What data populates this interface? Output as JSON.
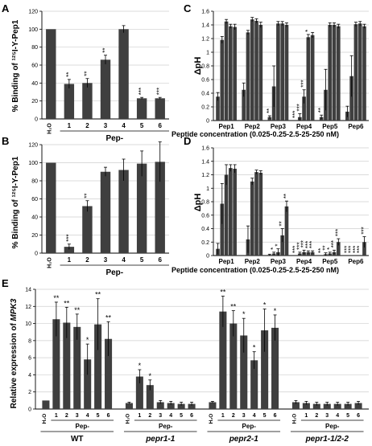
{
  "colors": {
    "bar": "#3f3f3f",
    "axis": "#000000",
    "grid": "#cfcfcf",
    "text": "#000000"
  },
  "chart_data": [
    {
      "panel": "A",
      "type": "bar",
      "ylabel": "% Binding of ¹²⁵I-Y-Pep1",
      "xlabel": "Pep-",
      "ylim": [
        0,
        120
      ],
      "yticks": [
        0,
        20,
        40,
        60,
        80,
        100,
        120
      ],
      "grid": true,
      "categories": [
        "H₂O",
        "1",
        "2",
        "3",
        "4",
        "5",
        "6"
      ],
      "values": [
        100,
        39,
        40,
        66,
        100,
        23,
        23
      ],
      "errors": [
        0,
        5,
        5,
        5,
        4,
        1,
        1
      ],
      "significance": [
        "",
        "**",
        "**",
        "**",
        "",
        "***",
        "***"
      ]
    },
    {
      "panel": "B",
      "type": "bar",
      "ylabel": "% Binding of ¹²⁵I-Y-Pep1",
      "xlabel": "Pep-",
      "ylim": [
        0,
        120
      ],
      "yticks": [
        0,
        20,
        40,
        60,
        80,
        100,
        120
      ],
      "grid": true,
      "categories": [
        "H₂O",
        "1",
        "2",
        "3",
        "4",
        "5",
        "6"
      ],
      "values": [
        100,
        7,
        52,
        90,
        92,
        99,
        101
      ],
      "errors": [
        0,
        3,
        6,
        5,
        12,
        14,
        22
      ],
      "significance": [
        "",
        "***",
        "**",
        "",
        "",
        "",
        ""
      ]
    },
    {
      "panel": "C",
      "type": "bar",
      "ylabel": "ΔpH",
      "xlabel": "Peptide concentration (0.025-0.25-2.5-25-250 nM)",
      "ylim": [
        0,
        1.6
      ],
      "yticks": [
        0,
        0.2,
        0.4,
        0.6,
        0.8,
        1,
        1.2,
        1.4,
        1.6
      ],
      "grid": true,
      "categories": [
        "Pep1",
        "Pep2",
        "Pep3",
        "Pep4",
        "Pep5",
        "Pep6"
      ],
      "values": [
        [
          0.35,
          1.18,
          1.45,
          1.38,
          1.37
        ],
        [
          0.45,
          1.29,
          1.48,
          1.46,
          1.4
        ],
        [
          0.05,
          0.5,
          1.42,
          1.42,
          1.4
        ],
        [
          0.0,
          0.05,
          0.35,
          1.22,
          1.25
        ],
        [
          0.05,
          0.45,
          1.4,
          1.4,
          1.38
        ],
        [
          0.13,
          0.65,
          1.41,
          1.42,
          1.38
        ]
      ],
      "errors": [
        [
          0.06,
          0.05,
          0.03,
          0.03,
          0.04
        ],
        [
          0.1,
          0.03,
          0.03,
          0.03,
          0.04
        ],
        [
          0.02,
          0.3,
          0.03,
          0.03,
          0.03
        ],
        [
          0.0,
          0.05,
          0.1,
          0.04,
          0.04
        ],
        [
          0.03,
          0.3,
          0.03,
          0.03,
          0.03
        ],
        [
          0.08,
          0.3,
          0.03,
          0.03,
          0.03
        ]
      ],
      "significance": [
        [
          "",
          "",
          "",
          "",
          ""
        ],
        [
          "",
          "",
          "",
          "",
          ""
        ],
        [
          "**",
          "",
          "",
          "",
          ""
        ],
        [
          "***",
          "***",
          "***",
          "*",
          ""
        ],
        [
          "**",
          "",
          "",
          "",
          ""
        ],
        [
          "",
          "",
          "",
          "",
          ""
        ]
      ]
    },
    {
      "panel": "D",
      "type": "bar",
      "ylabel": "ΔpH",
      "xlabel": "Peptide concentration (0.025-0.25-2.5-25-250 nM)",
      "ylim": [
        0,
        1.6
      ],
      "yticks": [
        0,
        0.2,
        0.4,
        0.6,
        0.8,
        1,
        1.2,
        1.4,
        1.6
      ],
      "grid": true,
      "categories": [
        "Pep1",
        "Pep2",
        "Pep3",
        "Pep4",
        "Pep5",
        "Pep6"
      ],
      "values": [
        [
          0.1,
          0.77,
          1.2,
          1.3,
          1.29
        ],
        [
          0.0,
          0.24,
          1.1,
          1.24,
          1.23
        ],
        [
          0.01,
          0.03,
          0.05,
          0.3,
          0.73
        ],
        [
          0.0,
          0.03,
          0.05,
          0.05,
          0.05
        ],
        [
          0.0,
          0.02,
          0.03,
          0.05,
          0.2
        ],
        [
          0.0,
          0.0,
          0.0,
          0.0,
          0.2
        ]
      ],
      "errors": [
        [
          0.08,
          0.3,
          0.15,
          0.05,
          0.06
        ],
        [
          0.0,
          0.2,
          0.05,
          0.03,
          0.03
        ],
        [
          0.01,
          0.02,
          0.05,
          0.1,
          0.08
        ],
        [
          0.0,
          0.02,
          0.03,
          0.02,
          0.02
        ],
        [
          0.0,
          0.02,
          0.02,
          0.03,
          0.05
        ],
        [
          0.0,
          0.0,
          0.0,
          0.0,
          0.08
        ]
      ],
      "significance": [
        [
          "",
          "",
          "",
          "",
          ""
        ],
        [
          "",
          "",
          "",
          "",
          ""
        ],
        [
          "",
          "*",
          "*",
          "**",
          "**"
        ],
        [
          "***",
          "***",
          "***",
          "***",
          "***"
        ],
        [
          "**",
          "**",
          "*",
          "***",
          "***"
        ],
        [
          "***",
          "***",
          "***",
          "***",
          "***"
        ]
      ]
    },
    {
      "panel": "E",
      "type": "bar",
      "ylabel": "Relative expression of MPK3",
      "xlabel": "Pep-",
      "ylim": [
        0,
        14
      ],
      "yticks": [
        0,
        2,
        4,
        6,
        8,
        10,
        12,
        14
      ],
      "grid": true,
      "groups": [
        {
          "name": "WT",
          "categories": [
            "H₂O",
            "1",
            "2",
            "3",
            "4",
            "5",
            "6"
          ],
          "values": [
            1,
            10.5,
            10.1,
            9.6,
            5.8,
            9.9,
            8.2
          ],
          "errors": [
            0,
            2.0,
            1.8,
            1.5,
            1.8,
            3.0,
            2.0
          ],
          "significance": [
            "",
            "**",
            "**",
            "**",
            "*",
            "**",
            "**"
          ]
        },
        {
          "name": "pepr1-1",
          "categories": [
            "H₂O",
            "1",
            "2",
            "3",
            "4",
            "5",
            "6"
          ],
          "values": [
            0.7,
            3.8,
            2.8,
            0.8,
            0.7,
            0.6,
            0.6
          ],
          "errors": [
            0.1,
            0.8,
            0.6,
            0.2,
            0.2,
            0.2,
            0.2
          ],
          "significance": [
            "",
            "*",
            "*",
            "",
            "",
            "",
            ""
          ]
        },
        {
          "name": "pepr2-1",
          "categories": [
            "H₂O",
            "1",
            "2",
            "3",
            "4",
            "5",
            "6"
          ],
          "values": [
            0.8,
            11.4,
            10.0,
            8.6,
            5.7,
            9.2,
            9.5
          ],
          "errors": [
            0.1,
            1.8,
            1.5,
            2.0,
            1.0,
            2.5,
            1.5
          ],
          "significance": [
            "",
            "**",
            "**",
            "*",
            "*",
            "*",
            "*"
          ]
        },
        {
          "name": "pepr1-1/2-2",
          "categories": [
            "H₂O",
            "1",
            "2",
            "3",
            "4",
            "5",
            "6"
          ],
          "values": [
            0.8,
            0.7,
            0.6,
            0.6,
            0.6,
            0.6,
            0.7
          ],
          "errors": [
            0.2,
            0.2,
            0.2,
            0.2,
            0.2,
            0.2,
            0.2
          ],
          "significance": [
            "",
            "",
            "",
            "",
            "",
            "",
            ""
          ]
        }
      ]
    }
  ]
}
